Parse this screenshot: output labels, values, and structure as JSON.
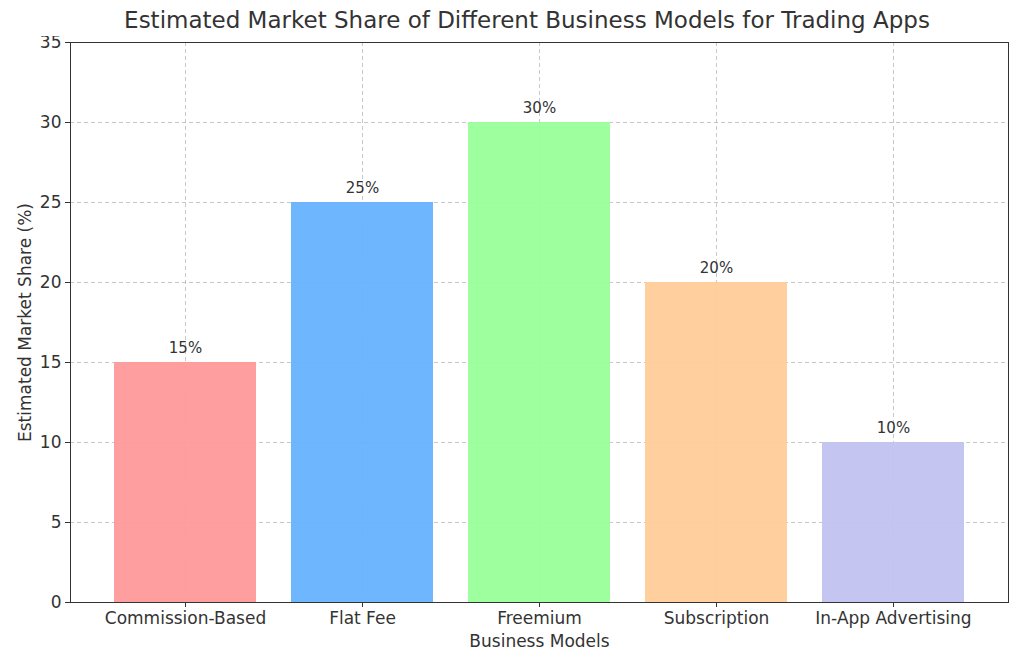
{
  "chart_data": {
    "type": "bar",
    "title": "Estimated Market Share of Different Business Models for Trading Apps",
    "xlabel": "Business Models",
    "ylabel": "Estimated Market Share (%)",
    "categories": [
      "Commission-Based",
      "Flat Fee",
      "Freemium",
      "Subscription",
      "In-App Advertising"
    ],
    "values": [
      15,
      25,
      30,
      20,
      10
    ],
    "value_labels": [
      "15%",
      "25%",
      "30%",
      "20%",
      "10%"
    ],
    "colors": [
      "#ff9999",
      "#66b3ff",
      "#99ff99",
      "#ffcc99",
      "#c2c2f0"
    ],
    "ylim": [
      0,
      35
    ],
    "yticks": [
      0,
      5,
      10,
      15,
      20,
      25,
      30,
      35
    ],
    "grid": true,
    "data_labels": true
  }
}
